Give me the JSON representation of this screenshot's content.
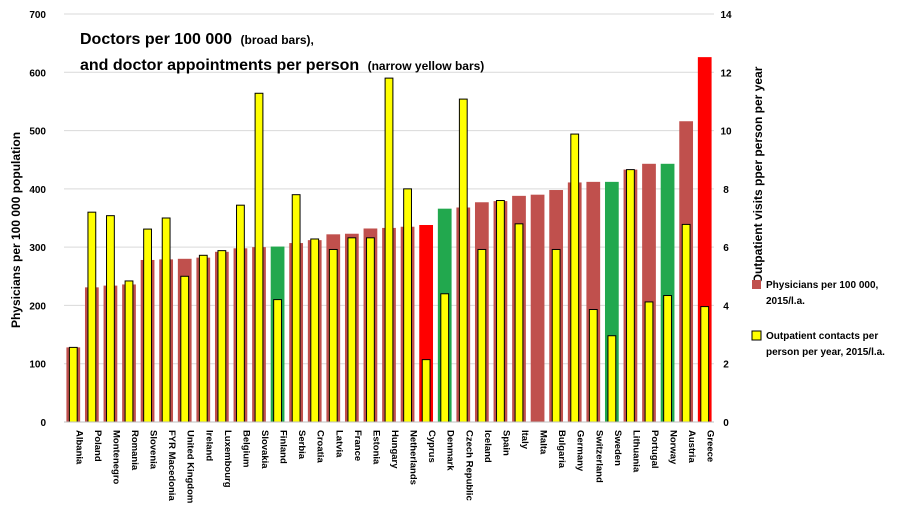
{
  "chart_data": {
    "type": "bar",
    "title_line1_main": "Doctors per 100 000",
    "title_line1_small": "(broad bars),",
    "title_line2_main": "and doctor appointments per person",
    "title_line2_small": "(narrow yellow bars)",
    "ylabel_left": "Physicians per 100 000 population",
    "ylabel_right": "Outpatient visits pper person per year",
    "ylim_left": [
      0,
      700
    ],
    "ylim_right": [
      0,
      14
    ],
    "yticks_left": [
      "0",
      "100",
      "200",
      "300",
      "400",
      "500",
      "600",
      "700"
    ],
    "yticks_right": [
      "0",
      "2",
      "4",
      "6",
      "8",
      "10",
      "12",
      "14"
    ],
    "categories": [
      "Albania",
      "Poland",
      "Montenegro",
      "Romania",
      "Slovenia",
      "FYR Macedonia",
      "United Kingdom",
      "Ireland",
      "Luxembourg",
      "Belgium",
      "Slovakia",
      "Finland",
      "Serbia",
      "Croatia",
      "Latvia",
      "France",
      "Estonia",
      "Hungary",
      "Netherlands",
      "Cyprus",
      "Denmark",
      "Czech Republic",
      "Iceland",
      "Spain",
      "Italy",
      "Malta",
      "Bulgaria",
      "Germany",
      "Switzerland",
      "Sweden",
      "Lithuania",
      "Portugal",
      "Norway",
      "Austria",
      "Greece"
    ],
    "series": [
      {
        "name": "Physicians per 100 000, 2015/l.a.",
        "axis": "left",
        "values": [
          128,
          231,
          234,
          236,
          278,
          279,
          280,
          282,
          292,
          298,
          300,
          301,
          307,
          312,
          322,
          323,
          332,
          333,
          335,
          338,
          366,
          368,
          377,
          379,
          388,
          390,
          398,
          411,
          412,
          412,
          433,
          443,
          443,
          516,
          626
        ]
      },
      {
        "name": "Outpatient contacts per person per year, 2015/l.a.",
        "axis": "right",
        "values": [
          2.56,
          7.2,
          7.08,
          4.84,
          6.62,
          7.0,
          5.0,
          5.72,
          5.88,
          7.44,
          11.28,
          4.2,
          7.8,
          6.28,
          5.92,
          6.32,
          6.32,
          11.8,
          8.0,
          2.14,
          4.4,
          11.08,
          5.92,
          7.6,
          6.8,
          0,
          5.92,
          9.88,
          3.86,
          2.96,
          8.66,
          4.12,
          4.34,
          6.78,
          3.96
        ]
      }
    ],
    "colors": {
      "physicians_default": "#c0504d",
      "physicians_highlight_red": "#ff0000",
      "physicians_highlight_green": "#22a84e",
      "outpatient": "#ffff00",
      "outpatient_border": "#000000"
    },
    "bar_color_keys": [
      "default",
      "default",
      "default",
      "default",
      "default",
      "default",
      "default",
      "default",
      "default",
      "default",
      "default",
      "green",
      "default",
      "default",
      "default",
      "default",
      "default",
      "default",
      "default",
      "red",
      "green",
      "default",
      "default",
      "default",
      "default",
      "default",
      "default",
      "default",
      "default",
      "green",
      "default",
      "default",
      "green",
      "default",
      "red"
    ],
    "legend_position": "right",
    "grid": true
  }
}
